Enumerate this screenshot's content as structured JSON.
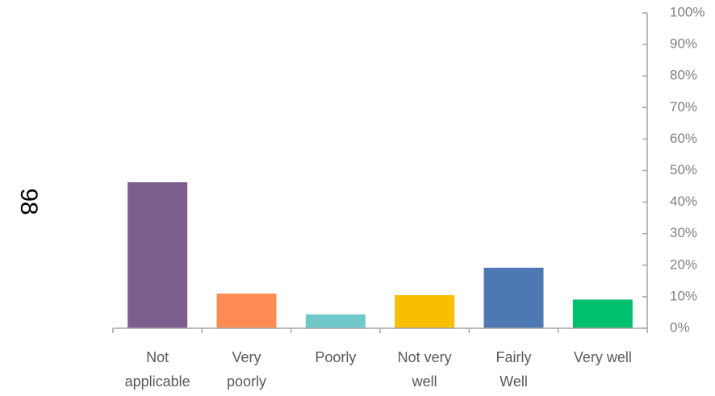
{
  "side_label": "98",
  "chart_data": {
    "type": "bar",
    "categories": [
      [
        "Not",
        "applicable"
      ],
      [
        "Very",
        "poorly"
      ],
      [
        "Poorly"
      ],
      [
        "Not very",
        "well"
      ],
      [
        "Fairly",
        "Well"
      ],
      [
        "Very well"
      ]
    ],
    "values": [
      46.3,
      11.0,
      4.4,
      10.5,
      19.2,
      9.1
    ],
    "value_unit": "%",
    "bar_colors": [
      "#7b5e8e",
      "#ff8c52",
      "#6fc9cb",
      "#f7bf00",
      "#4e78b1",
      "#00bf6f"
    ],
    "y_axis_position": "right",
    "ylim": [
      0,
      100
    ],
    "yticks": [
      "0%",
      "10%",
      "20%",
      "30%",
      "40%",
      "50%",
      "60%",
      "70%",
      "80%",
      "90%",
      "100%"
    ],
    "grid": false,
    "legend": "none"
  }
}
